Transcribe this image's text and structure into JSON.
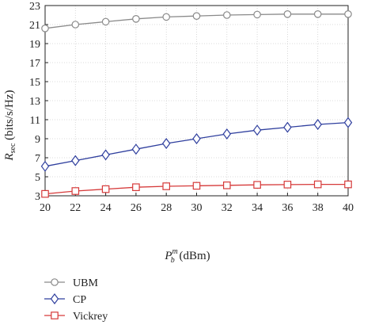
{
  "chart_data": {
    "type": "line",
    "x": [
      20,
      22,
      24,
      26,
      28,
      30,
      32,
      34,
      36,
      38,
      40
    ],
    "xlim": [
      20,
      40
    ],
    "ylim": [
      3,
      23
    ],
    "x_ticks": [
      20,
      22,
      24,
      26,
      28,
      30,
      32,
      34,
      36,
      38,
      40
    ],
    "y_ticks": [
      3,
      5,
      7,
      9,
      11,
      13,
      15,
      17,
      19,
      21,
      23
    ],
    "grid": true,
    "legend_position": "below",
    "ylabel": {
      "main": "R",
      "sub": "sec",
      "unit": " (bits/s/Hz)"
    },
    "xlabel": {
      "main": "P",
      "sub": "b",
      "sup": "m",
      "unit": " (dBm)"
    },
    "series": [
      {
        "name": "UBM",
        "marker": "circle",
        "color": "#8a8a8a",
        "values": [
          20.6,
          21.0,
          21.3,
          21.6,
          21.8,
          21.9,
          22.0,
          22.05,
          22.1,
          22.1,
          22.1
        ]
      },
      {
        "name": "CP",
        "marker": "diamond",
        "color": "#2f3f9e",
        "values": [
          6.1,
          6.7,
          7.3,
          7.9,
          8.5,
          9.0,
          9.5,
          9.9,
          10.2,
          10.5,
          10.7
        ]
      },
      {
        "name": "Vickrey",
        "marker": "square",
        "color": "#d63a3a",
        "values": [
          3.2,
          3.5,
          3.7,
          3.9,
          4.0,
          4.05,
          4.1,
          4.15,
          4.18,
          4.2,
          4.2
        ]
      }
    ]
  }
}
